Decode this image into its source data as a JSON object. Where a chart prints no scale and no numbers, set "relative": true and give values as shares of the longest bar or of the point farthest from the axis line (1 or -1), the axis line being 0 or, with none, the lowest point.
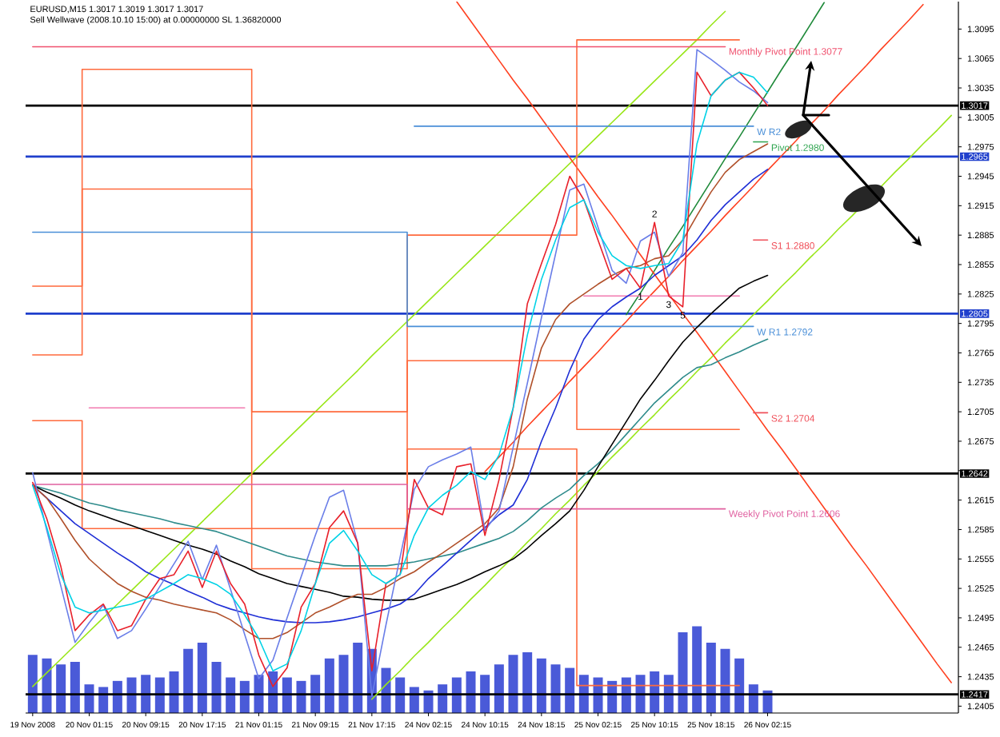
{
  "chart_data": [
    {
      "type": "line",
      "title": "EURUSD,M15 1.3017 1.3019 1.3017 1.3017",
      "subtitle": "Sell Wellwave (2008.10.10 15:00) at 0.00000000 SL 1.36820000",
      "categories": [
        "19 Nov 2008",
        null,
        null,
        null,
        "20 Nov 01:15",
        null,
        null,
        null,
        "20 Nov 09:15",
        null,
        null,
        null,
        "20 Nov 17:15",
        null,
        null,
        null,
        "21 Nov 01:15",
        null,
        null,
        null,
        "21 Nov 09:15",
        null,
        null,
        null,
        "21 Nov 17:15",
        null,
        null,
        null,
        "24 Nov 02:15",
        null,
        null,
        null,
        "24 Nov 10:15",
        null,
        null,
        null,
        "24 Nov 18:15",
        null,
        null,
        null,
        "25 Nov 02:15",
        null,
        null,
        null,
        "25 Nov 10:15",
        null,
        null,
        null,
        "25 Nov 18:15",
        null,
        null,
        null,
        "26 Nov 02:15",
        null,
        null,
        null,
        null,
        null,
        null,
        null,
        null,
        null,
        null,
        null,
        null,
        null
      ],
      "ylim": [
        1.2398,
        1.3123
      ],
      "yticks": [
        1.2405,
        1.2435,
        1.2465,
        1.2495,
        1.2525,
        1.2555,
        1.2585,
        1.2615,
        {
          "value": 1.2645,
          "label": null
        },
        1.2675,
        1.2705,
        1.2735,
        1.2765,
        1.2795,
        1.2825,
        1.2855,
        1.2885,
        1.2915,
        1.2945,
        1.2975,
        1.3005,
        1.3035,
        1.3065,
        1.3095
      ],
      "ref_lines": [
        {
          "axis": "y",
          "value": 1.3017,
          "label": "1.3017",
          "color": "#000000"
        },
        {
          "axis": "y",
          "value": 1.2965,
          "label": "1.2965",
          "color": "#1f3fcc"
        },
        {
          "axis": "y",
          "value": 1.2805,
          "label": "1.2805",
          "color": "#1f3fcc"
        },
        {
          "axis": "y",
          "value": 1.2642,
          "label": "1.2642",
          "color": "#000000"
        },
        {
          "axis": "y",
          "value": 1.2417,
          "label": "1.2417",
          "color": "#000000"
        }
      ],
      "series": [
        {
          "color": "#99e619",
          "values": [
            1.2425,
            1.2439,
            1.2453,
            1.2467,
            1.2481,
            1.2495,
            1.2509,
            1.2523,
            1.2537,
            1.2551,
            1.2565,
            1.2579,
            1.2593,
            1.2607,
            1.2621,
            1.2635,
            1.2649,
            1.2663,
            1.2677,
            1.2691,
            1.2705,
            1.2719,
            1.2733,
            1.2747,
            1.2762,
            1.2776,
            1.279,
            1.2804,
            1.2818,
            1.2832,
            1.2846,
            1.286,
            1.2874,
            1.2888,
            1.2902,
            1.2916,
            1.293,
            1.2944,
            1.2958,
            1.2972,
            1.2986,
            1.3,
            1.3014,
            1.3028,
            1.3042,
            1.3056,
            1.307,
            1.3084,
            1.3099,
            1.3113,
            null,
            null,
            null,
            null,
            null,
            null,
            null,
            null,
            null,
            null,
            null,
            null,
            null,
            null,
            null,
            null
          ]
        },
        {
          "color": "#99e619",
          "values": [
            null,
            null,
            null,
            null,
            null,
            null,
            null,
            null,
            null,
            null,
            null,
            null,
            null,
            null,
            null,
            null,
            null,
            null,
            null,
            null,
            null,
            null,
            null,
            null,
            1.2412,
            1.2427,
            1.2441,
            1.2456,
            1.247,
            1.2485,
            1.2499,
            1.2514,
            1.2528,
            1.2543,
            1.2557,
            1.2572,
            1.2586,
            1.2601,
            1.2615,
            1.263,
            1.2644,
            1.2659,
            1.2673,
            1.2688,
            1.2702,
            1.2717,
            1.2731,
            1.2746,
            1.276,
            1.2775,
            1.2789,
            1.2804,
            1.2818,
            1.2833,
            1.2847,
            1.2862,
            1.2876,
            1.2891,
            1.2905,
            1.292,
            1.2934,
            1.2949,
            1.2963,
            1.2978,
            1.2992,
            1.3007
          ]
        },
        {
          "color": "#1f8a3a",
          "values": [
            null,
            null,
            null,
            null,
            null,
            null,
            null,
            null,
            null,
            null,
            null,
            null,
            null,
            null,
            null,
            null,
            null,
            null,
            null,
            null,
            null,
            null,
            null,
            null,
            null,
            null,
            null,
            null,
            null,
            null,
            null,
            null,
            null,
            null,
            null,
            null,
            null,
            null,
            null,
            null,
            null,
            null,
            1.2804,
            1.2826,
            1.2849,
            1.2872,
            1.2894,
            1.2917,
            1.294,
            1.2963,
            1.2985,
            1.3008,
            1.3031,
            1.3054,
            1.3076,
            1.3099,
            1.3122,
            null,
            null,
            null,
            null,
            null,
            null,
            null,
            null,
            null
          ]
        },
        {
          "color": "#ff4020",
          "values": [
            null,
            null,
            null,
            null,
            null,
            null,
            null,
            null,
            null,
            null,
            null,
            null,
            null,
            null,
            null,
            null,
            null,
            null,
            null,
            null,
            null,
            null,
            null,
            null,
            null,
            null,
            null,
            null,
            null,
            null,
            null,
            null,
            1.2644,
            1.2659,
            1.2674,
            1.269,
            1.2705,
            1.272,
            1.2736,
            1.2751,
            1.2766,
            1.2782,
            1.2797,
            1.2813,
            1.2828,
            1.2843,
            1.2859,
            1.2874,
            1.2889,
            1.2905,
            1.292,
            1.2935,
            1.2951,
            1.2966,
            1.2981,
            1.2997,
            1.3012,
            1.3028,
            1.3043,
            1.3058,
            1.3074,
            1.3089,
            1.3104,
            1.312,
            null,
            null
          ]
        },
        {
          "color": "#ff4020",
          "values": [
            null,
            null,
            null,
            null,
            null,
            null,
            null,
            null,
            null,
            null,
            null,
            null,
            null,
            null,
            null,
            null,
            null,
            null,
            null,
            null,
            null,
            null,
            null,
            null,
            null,
            null,
            null,
            null,
            null,
            null,
            1.3123,
            1.3103,
            1.3083,
            1.3063,
            1.3043,
            1.3024,
            1.3004,
            1.2984,
            1.2964,
            1.2944,
            1.2924,
            1.2905,
            1.2885,
            1.2865,
            1.2845,
            1.2825,
            1.2805,
            1.2786,
            1.2766,
            1.2746,
            1.2726,
            1.2706,
            1.2686,
            1.2667,
            1.2647,
            1.2627,
            1.2607,
            1.2587,
            1.2567,
            1.2548,
            1.2528,
            1.2508,
            1.2488,
            1.2468,
            1.2448,
            1.2429
          ]
        },
        {
          "type": "step",
          "color": "#ff6a3d",
          "values": [
            1.2833,
            1.2833,
            1.2833,
            1.2833,
            1.3054,
            1.3054,
            1.3054,
            1.3054,
            1.3054,
            1.3054,
            1.3054,
            1.3054,
            1.3054,
            1.3054,
            1.3054,
            1.3054,
            1.2705,
            1.2705,
            1.2705,
            1.2705,
            1.2705,
            1.2705,
            1.2705,
            1.2705,
            1.2705,
            1.2705,
            1.2705,
            1.2885,
            1.2885,
            1.2885,
            1.2885,
            1.2885,
            1.2885,
            1.2885,
            1.2885,
            1.2885,
            1.2885,
            1.2885,
            1.2885,
            1.3084,
            1.3084,
            1.3084,
            1.3084,
            1.3084,
            1.3084,
            1.3084,
            1.3084,
            1.3084,
            1.3084,
            1.3084,
            1.3084,
            null,
            null,
            null,
            null,
            null,
            null,
            null,
            null,
            null,
            null,
            null,
            null,
            null,
            null,
            null
          ]
        },
        {
          "type": "step",
          "color": "#ff6a3d",
          "values": [
            1.2763,
            1.2763,
            1.2763,
            1.2763,
            1.2932,
            1.2932,
            1.2932,
            1.2932,
            1.2932,
            1.2932,
            1.2932,
            1.2932,
            1.2932,
            1.2932,
            1.2932,
            1.2932,
            1.2586,
            1.2586,
            1.2586,
            1.2586,
            1.2586,
            1.2586,
            1.2586,
            1.2586,
            1.2586,
            1.2586,
            1.2586,
            1.2757,
            1.2757,
            1.2757,
            1.2757,
            1.2757,
            1.2757,
            1.2757,
            1.2757,
            1.2757,
            1.2757,
            1.2757,
            1.2757,
            1.2687,
            1.2687,
            1.2687,
            1.2687,
            1.2687,
            1.2687,
            1.2687,
            1.2687,
            1.2687,
            1.2687,
            1.2687,
            1.2687,
            null,
            null,
            null,
            null,
            null,
            null,
            null,
            null,
            null,
            null,
            null,
            null,
            null,
            null,
            null
          ]
        },
        {
          "type": "step",
          "color": "#ff6a3d",
          "values": [
            1.2696,
            1.2696,
            1.2696,
            1.2696,
            1.2586,
            1.2586,
            1.2586,
            1.2586,
            1.2586,
            1.2586,
            1.2586,
            1.2586,
            1.2586,
            1.2586,
            1.2586,
            1.2586,
            1.2545,
            1.2545,
            1.2545,
            1.2545,
            1.2545,
            1.2545,
            1.2545,
            1.2545,
            1.2545,
            1.2545,
            1.2545,
            1.2667,
            1.2667,
            1.2667,
            1.2667,
            1.2667,
            1.2667,
            1.2667,
            1.2667,
            1.2667,
            1.2667,
            1.2667,
            1.2667,
            1.2426,
            1.2426,
            1.2426,
            1.2426,
            1.2426,
            1.2426,
            1.2426,
            1.2426,
            1.2426,
            1.2426,
            1.2426,
            1.2426,
            null,
            null,
            null,
            null,
            null,
            null,
            null,
            null,
            null,
            null,
            null,
            null,
            null,
            null,
            null
          ]
        },
        {
          "type": "step",
          "color": "#f27ab0",
          "values": [
            null,
            null,
            null,
            null,
            1.2709,
            1.2709,
            1.2709,
            1.2709,
            1.2709,
            1.2709,
            1.2709,
            1.2709,
            1.2709,
            1.2709,
            1.2709,
            1.2709,
            null,
            null,
            null,
            null,
            null,
            null,
            null,
            null,
            null,
            null,
            null,
            null,
            null,
            null,
            null,
            null,
            null,
            null,
            null,
            null,
            null,
            null,
            null,
            1.2823,
            1.2823,
            1.2823,
            1.2823,
            1.2823,
            1.2823,
            1.2823,
            1.2823,
            1.2823,
            1.2823,
            1.2823,
            1.2823,
            null,
            null,
            null,
            null,
            null,
            null,
            null,
            null,
            null,
            null,
            null,
            null,
            null,
            null,
            null
          ]
        },
        {
          "name": "Monthly Pivot Point 1.3077",
          "color": "#f0506e",
          "values": [
            1.3077,
            1.3077,
            1.3077,
            1.3077,
            1.3077,
            1.3077,
            1.3077,
            1.3077,
            1.3077,
            1.3077,
            1.3077,
            1.3077,
            1.3077,
            1.3077,
            1.3077,
            1.3077,
            1.3077,
            1.3077,
            1.3077,
            1.3077,
            1.3077,
            1.3077,
            1.3077,
            1.3077,
            1.3077,
            1.3077,
            1.3077,
            1.3077,
            1.3077,
            1.3077,
            1.3077,
            1.3077,
            1.3077,
            1.3077,
            1.3077,
            1.3077,
            1.3077,
            1.3077,
            1.3077,
            1.3077,
            1.3077,
            1.3077,
            1.3077,
            1.3077,
            1.3077,
            1.3077,
            1.3077,
            1.3077,
            1.3077,
            1.3077,
            null,
            null,
            null,
            null,
            null,
            null,
            null,
            null,
            null,
            null,
            null,
            null,
            null,
            null,
            null,
            null
          ]
        },
        {
          "type": "step",
          "name": "Weekly Pivot Point 1.2606",
          "color": "#e060a0",
          "values": [
            1.2631,
            1.2631,
            1.2631,
            1.2631,
            1.2631,
            1.2631,
            1.2631,
            1.2631,
            1.2631,
            1.2631,
            1.2631,
            1.2631,
            1.2631,
            1.2631,
            1.2631,
            1.2631,
            1.2631,
            1.2631,
            1.2631,
            1.2631,
            1.2631,
            1.2631,
            1.2631,
            1.2631,
            1.2631,
            1.2631,
            1.2631,
            1.2606,
            1.2606,
            1.2606,
            1.2606,
            1.2606,
            1.2606,
            1.2606,
            1.2606,
            1.2606,
            1.2606,
            1.2606,
            1.2606,
            1.2606,
            1.2606,
            1.2606,
            1.2606,
            1.2606,
            1.2606,
            1.2606,
            1.2606,
            1.2606,
            1.2606,
            1.2606,
            null,
            null,
            null,
            null,
            null,
            null,
            null,
            null,
            null,
            null,
            null,
            null,
            null,
            null,
            null,
            null
          ]
        },
        {
          "type": "step",
          "name": "W R2",
          "color": "#4a8fd8",
          "values": [
            null,
            null,
            null,
            null,
            null,
            null,
            null,
            null,
            null,
            null,
            null,
            null,
            null,
            null,
            null,
            null,
            null,
            null,
            null,
            null,
            null,
            null,
            null,
            null,
            null,
            null,
            null,
            1.2996,
            1.2996,
            1.2996,
            1.2996,
            1.2996,
            1.2996,
            1.2996,
            1.2996,
            1.2996,
            1.2996,
            1.2996,
            1.2996,
            1.2996,
            1.2996,
            1.2996,
            1.2996,
            1.2996,
            1.2996,
            1.2996,
            1.2996,
            1.2996,
            1.2996,
            1.2996,
            1.2996,
            1.2996,
            null,
            null,
            null,
            null,
            null,
            null,
            null,
            null,
            null,
            null,
            null,
            null,
            null,
            null
          ]
        },
        {
          "type": "step",
          "name": "W R1 1.2792",
          "color": "#4a8fd8",
          "values": [
            1.2888,
            1.2888,
            1.2888,
            1.2888,
            1.2888,
            1.2888,
            1.2888,
            1.2888,
            1.2888,
            1.2888,
            1.2888,
            1.2888,
            1.2888,
            1.2888,
            1.2888,
            1.2888,
            1.2888,
            1.2888,
            1.2888,
            1.2888,
            1.2888,
            1.2888,
            1.2888,
            1.2888,
            1.2888,
            1.2888,
            1.2888,
            1.2792,
            1.2792,
            1.2792,
            1.2792,
            1.2792,
            1.2792,
            1.2792,
            1.2792,
            1.2792,
            1.2792,
            1.2792,
            1.2792,
            1.2792,
            1.2792,
            1.2792,
            1.2792,
            1.2792,
            1.2792,
            1.2792,
            1.2792,
            1.2792,
            1.2792,
            1.2792,
            1.2792,
            1.2792,
            null,
            null,
            null,
            null,
            null,
            null,
            null,
            null,
            null,
            null,
            null,
            null,
            null,
            null
          ]
        },
        {
          "name": "Pivot 1.2980",
          "color": "#2ea44f",
          "values": [
            null,
            null,
            null,
            null,
            null,
            null,
            null,
            null,
            null,
            null,
            null,
            null,
            null,
            null,
            null,
            null,
            null,
            null,
            null,
            null,
            null,
            null,
            null,
            null,
            null,
            null,
            null,
            null,
            null,
            null,
            null,
            null,
            null,
            null,
            null,
            null,
            null,
            null,
            null,
            null,
            null,
            null,
            null,
            null,
            null,
            null,
            null,
            null,
            null,
            null,
            null,
            1.298,
            1.298,
            null,
            null,
            null,
            null,
            null,
            null,
            null,
            null,
            null,
            null,
            null,
            null,
            null
          ]
        },
        {
          "name": "S1 1.2880",
          "color": "#f0505a",
          "values": [
            null,
            null,
            null,
            null,
            null,
            null,
            null,
            null,
            null,
            null,
            null,
            null,
            null,
            null,
            null,
            null,
            null,
            null,
            null,
            null,
            null,
            null,
            null,
            null,
            null,
            null,
            null,
            null,
            null,
            null,
            null,
            null,
            null,
            null,
            null,
            null,
            null,
            null,
            null,
            null,
            null,
            null,
            null,
            null,
            null,
            null,
            null,
            null,
            null,
            null,
            null,
            1.288,
            1.288,
            null,
            null,
            null,
            null,
            null,
            null,
            null,
            null,
            null,
            null,
            null,
            null,
            null
          ]
        },
        {
          "name": "S2 1.2704",
          "color": "#f0505a",
          "values": [
            null,
            null,
            null,
            null,
            null,
            null,
            null,
            null,
            null,
            null,
            null,
            null,
            null,
            null,
            null,
            null,
            null,
            null,
            null,
            null,
            null,
            null,
            null,
            null,
            null,
            null,
            null,
            null,
            null,
            null,
            null,
            null,
            null,
            null,
            null,
            null,
            null,
            null,
            null,
            null,
            null,
            null,
            null,
            null,
            null,
            null,
            null,
            null,
            null,
            null,
            null,
            1.2704,
            1.2704,
            null,
            null,
            null,
            null,
            null,
            null,
            null,
            null,
            null,
            null,
            null,
            null,
            null
          ]
        },
        {
          "color": "#2e8b8b",
          "values": [
            1.263,
            1.2626,
            1.2622,
            1.2617,
            1.2612,
            1.2609,
            1.2605,
            1.2602,
            1.2599,
            1.2596,
            1.2592,
            1.2589,
            1.2586,
            1.2583,
            1.2578,
            1.2573,
            1.2568,
            1.2563,
            1.2558,
            1.2555,
            1.2552,
            1.255,
            1.2548,
            1.2548,
            1.2548,
            1.2548,
            1.255,
            1.2552,
            1.2555,
            1.2558,
            1.2561,
            1.2566,
            1.2571,
            1.2576,
            1.2583,
            1.2594,
            1.2607,
            1.2617,
            1.2626,
            1.264,
            1.2652,
            1.2666,
            1.2682,
            1.2698,
            1.2714,
            1.2727,
            1.274,
            1.275,
            1.2753,
            1.276,
            1.2766,
            1.2773,
            1.2779,
            null,
            null,
            null,
            null,
            null,
            null,
            null,
            null,
            null,
            null,
            null,
            null,
            null
          ]
        },
        {
          "color": "#000000",
          "values": [
            1.263,
            1.2623,
            1.2617,
            1.261,
            1.2604,
            1.2599,
            1.2594,
            1.2589,
            1.2584,
            1.2579,
            1.2574,
            1.2569,
            1.2565,
            1.256,
            1.2553,
            1.2547,
            1.254,
            1.2535,
            1.253,
            1.2527,
            1.2524,
            1.2521,
            1.2517,
            1.2516,
            1.2514,
            1.2513,
            1.2513,
            1.2514,
            1.2519,
            1.2524,
            1.2529,
            1.2535,
            1.2542,
            1.2548,
            1.2555,
            1.2566,
            1.2579,
            1.2591,
            1.2604,
            1.2625,
            1.2649,
            1.2672,
            1.2695,
            1.2718,
            1.2737,
            1.2757,
            1.2776,
            1.2791,
            1.2805,
            1.2818,
            1.2831,
            1.2838,
            1.2844,
            null,
            null,
            null,
            null,
            null,
            null,
            null,
            null,
            null,
            null,
            null,
            null,
            null
          ]
        },
        {
          "color": "#1f2fd6",
          "values": [
            1.263,
            1.2617,
            1.2604,
            1.2591,
            1.2581,
            1.2571,
            1.2561,
            1.2552,
            1.2542,
            1.2535,
            1.2529,
            1.2522,
            1.2516,
            1.2509,
            1.2504,
            1.25,
            1.2496,
            1.2493,
            1.2491,
            1.249,
            1.249,
            1.2491,
            1.2493,
            1.2496,
            1.25,
            1.2504,
            1.2509,
            1.2519,
            1.2535,
            1.2548,
            1.2561,
            1.2574,
            1.2587,
            1.26,
            1.261,
            1.2636,
            1.2675,
            1.2709,
            1.2747,
            1.2779,
            1.2799,
            1.2812,
            1.2822,
            1.2831,
            1.2844,
            1.2854,
            1.2864,
            1.288,
            1.29,
            1.2916,
            1.2929,
            1.2942,
            1.2952,
            null,
            null,
            null,
            null,
            null,
            null,
            null,
            null,
            null,
            null,
            null,
            null,
            null
          ]
        },
        {
          "color": "#b0502a",
          "values": [
            1.263,
            1.2617,
            1.2596,
            1.2574,
            1.2555,
            1.2542,
            1.253,
            1.2522,
            1.2516,
            1.2513,
            1.2509,
            1.2506,
            1.2503,
            1.25,
            1.2493,
            1.2483,
            1.2474,
            1.2474,
            1.248,
            1.249,
            1.25,
            1.2506,
            1.2513,
            1.2519,
            1.2519,
            1.2526,
            1.2535,
            1.2542,
            1.2552,
            1.2561,
            1.2571,
            1.2581,
            1.2591,
            1.2607,
            1.2649,
            1.2718,
            1.277,
            1.2799,
            1.2815,
            1.2825,
            1.2835,
            1.2844,
            1.2851,
            1.2854,
            1.2861,
            1.2864,
            1.288,
            1.2905,
            1.2929,
            1.2949,
            1.2962,
            1.297,
            1.2978,
            null,
            null,
            null,
            null,
            null,
            null,
            null,
            null,
            null,
            null,
            null,
            null,
            null
          ]
        },
        {
          "color": "#6a7ee8",
          "values": [
            1.2643,
            1.2584,
            1.2527,
            1.247,
            1.249,
            1.2508,
            1.2474,
            1.2482,
            1.2504,
            1.2527,
            1.255,
            1.2573,
            1.2534,
            1.2569,
            1.2524,
            1.2478,
            1.2433,
            1.2452,
            1.2495,
            1.2537,
            1.2579,
            1.2618,
            1.2625,
            1.2571,
            1.2415,
            1.2488,
            1.2557,
            1.2626,
            1.2649,
            1.2656,
            1.2662,
            1.2669,
            1.2584,
            1.2604,
            1.2669,
            1.2734,
            1.2801,
            1.2866,
            1.2931,
            1.2937,
            1.2893,
            1.2849,
            1.2836,
            1.2879,
            1.2888,
            1.2843,
            1.2867,
            1.3074,
            1.3064,
            1.3053,
            1.3041,
            1.3032,
            1.302,
            null,
            null,
            null,
            null,
            null,
            null,
            null,
            null,
            null,
            null,
            null,
            null,
            null
          ]
        },
        {
          "color": "#e8202a",
          "values": [
            1.2633,
            1.2596,
            1.2547,
            1.2482,
            1.2498,
            1.2509,
            1.2482,
            1.2487,
            1.2514,
            1.2535,
            1.2539,
            1.2563,
            1.2526,
            1.2563,
            1.253,
            1.2509,
            1.2457,
            1.2425,
            1.2444,
            1.2506,
            1.253,
            1.2587,
            1.2604,
            1.2571,
            1.2441,
            1.253,
            1.2539,
            1.2636,
            1.2607,
            1.26,
            1.2649,
            1.2652,
            1.2579,
            1.2636,
            1.2709,
            1.2815,
            1.2856,
            1.2896,
            1.2945,
            1.2921,
            1.288,
            1.284,
            1.2851,
            1.2831,
            1.2898,
            1.2823,
            1.2812,
            1.3051,
            1.3027,
            1.3043,
            1.3051,
            1.3035,
            1.3017,
            null,
            null,
            null,
            null,
            null,
            null,
            null,
            null,
            null,
            null,
            null,
            null,
            null
          ]
        },
        {
          "color": "#00d2e6",
          "values": [
            1.263,
            1.2587,
            1.2539,
            1.2506,
            1.25,
            1.2503,
            1.2506,
            1.2509,
            1.2514,
            1.2522,
            1.253,
            1.2539,
            1.2535,
            1.2529,
            1.2519,
            1.2498,
            1.2474,
            1.2441,
            1.2448,
            1.2482,
            1.253,
            1.2571,
            1.2584,
            1.2563,
            1.2539,
            1.253,
            1.2539,
            1.2579,
            1.2607,
            1.262,
            1.263,
            1.2644,
            1.2636,
            1.2661,
            1.2709,
            1.2783,
            1.284,
            1.288,
            1.2913,
            1.2921,
            1.2888,
            1.2864,
            1.2854,
            1.2851,
            1.2854,
            1.2856,
            1.288,
            1.2978,
            1.3027,
            1.3043,
            1.3051,
            1.3046,
            1.303,
            null,
            null,
            null,
            null,
            null,
            null,
            null,
            null,
            null,
            null,
            null,
            null,
            null
          ]
        }
      ],
      "annotations": [
        {
          "text": "1",
          "y": 1.2831
        },
        {
          "text": "2",
          "y": 1.2898
        },
        {
          "text": "3",
          "y": 1.2823
        },
        {
          "text": "5",
          "y": 1.2812
        }
      ]
    },
    {
      "type": "bar",
      "relative": true,
      "tick_labels": false,
      "color": "#4a5ad8",
      "categories": [
        null,
        null,
        null,
        null,
        null,
        null,
        null,
        null,
        null,
        null,
        null,
        null,
        null,
        null,
        null,
        null,
        null,
        null,
        null,
        null,
        null,
        null,
        null,
        null,
        null,
        null,
        null,
        null,
        null,
        null,
        null,
        null,
        null,
        null,
        null,
        null,
        null,
        null,
        null,
        null,
        null,
        null,
        null,
        null,
        null,
        null,
        null,
        null,
        null,
        null,
        null,
        null,
        null,
        null,
        null,
        null,
        null,
        null,
        null,
        null,
        null,
        null,
        null,
        null,
        null,
        null
      ],
      "values": [
        0.67,
        0.63,
        0.56,
        0.59,
        0.33,
        0.3,
        0.37,
        0.41,
        0.44,
        0.41,
        0.48,
        0.74,
        0.81,
        0.59,
        0.41,
        0.37,
        0.44,
        0.48,
        0.41,
        0.37,
        0.44,
        0.63,
        0.67,
        0.81,
        0.74,
        0.52,
        0.41,
        0.3,
        0.26,
        0.33,
        0.41,
        0.48,
        0.44,
        0.56,
        0.67,
        0.7,
        0.63,
        0.56,
        0.52,
        0.44,
        0.41,
        0.37,
        0.41,
        0.44,
        0.48,
        0.44,
        0.93,
        1,
        0.81,
        0.74,
        0.63,
        0.33,
        0.26,
        null,
        null,
        null,
        null,
        null,
        null,
        null,
        null,
        null,
        null,
        null,
        null,
        null
      ]
    }
  ]
}
